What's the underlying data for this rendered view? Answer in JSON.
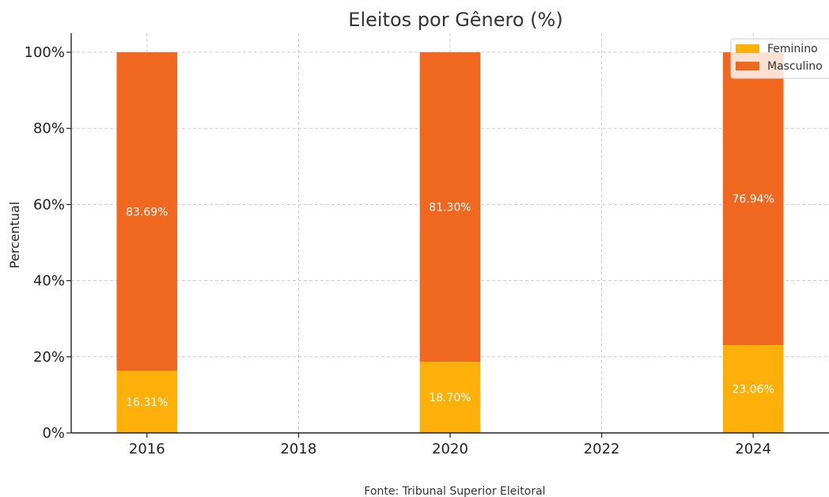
{
  "chart_data": {
    "type": "bar",
    "stacked": true,
    "title": "Eleitos por Gênero (%)",
    "xlabel": "",
    "ylabel": "Percentual",
    "x": [
      2016,
      2020,
      2024
    ],
    "x_ticks": [
      "2016",
      "2018",
      "2020",
      "2022",
      "2024"
    ],
    "xlim": [
      2015,
      2025
    ],
    "ylim": [
      0,
      105
    ],
    "y_ticks": [
      "0%",
      "20%",
      "40%",
      "60%",
      "80%",
      "100%"
    ],
    "series": [
      {
        "name": "Feminino",
        "color": "#FDB00A",
        "values": [
          16.31,
          18.7,
          23.06
        ],
        "labels": [
          "16.31%",
          "18.70%",
          "23.06%"
        ]
      },
      {
        "name": "Masculino",
        "color": "#F06820",
        "values": [
          83.69,
          81.3,
          76.94
        ],
        "labels": [
          "83.69%",
          "81.30%",
          "76.94%"
        ]
      }
    ],
    "grid": true,
    "legend_position": "top-right",
    "source": "Fonte: Tribunal Superior Eleitoral"
  }
}
